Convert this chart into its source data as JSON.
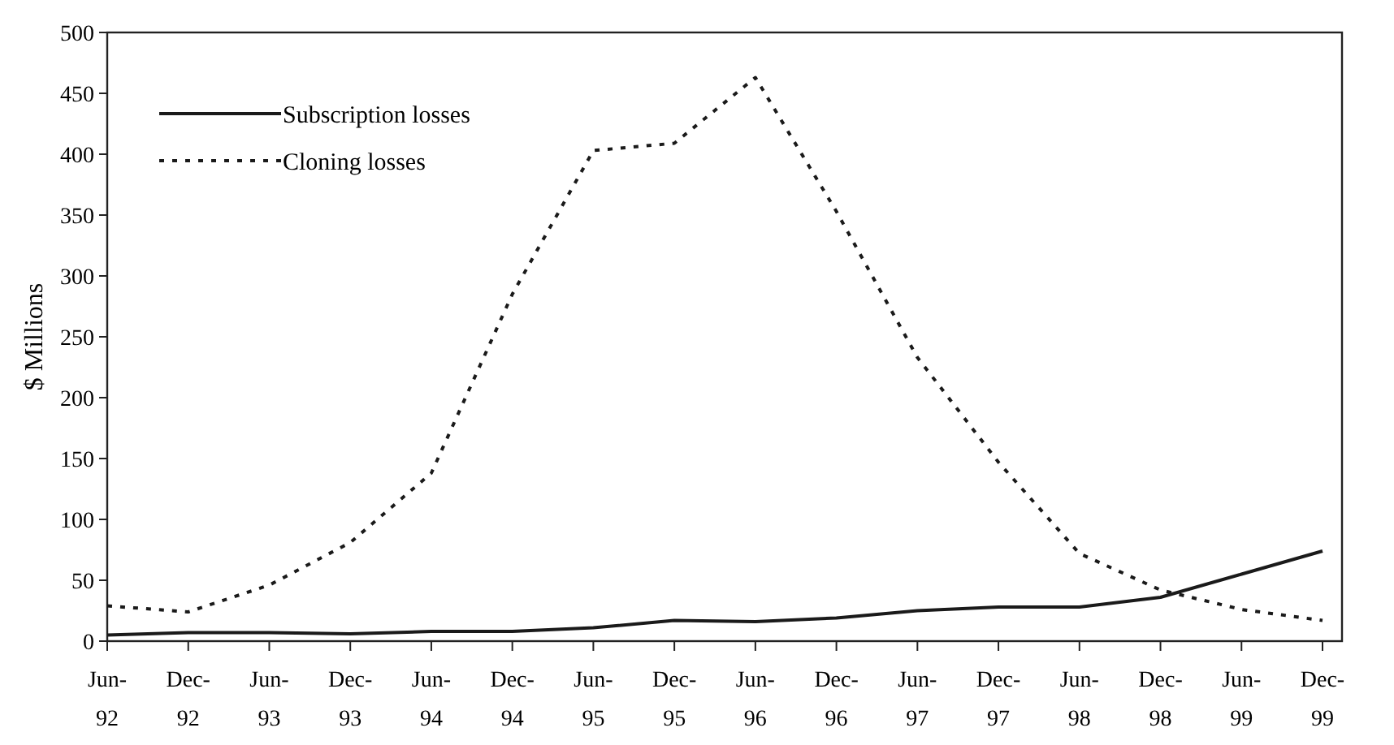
{
  "chart_data": {
    "type": "line",
    "ylabel": "$ Millions",
    "categories": [
      "Jun-92",
      "Dec-92",
      "Jun-93",
      "Dec-93",
      "Jun-94",
      "Dec-94",
      "Jun-95",
      "Dec-95",
      "Jun-96",
      "Dec-96",
      "Jun-97",
      "Dec-97",
      "Jun-98",
      "Dec-98",
      "Jun-99",
      "Dec-99"
    ],
    "series": [
      {
        "name": "Subscription losses",
        "color": "#1a1a1a",
        "line_style": "solid",
        "values": [
          5,
          7,
          7,
          6,
          8,
          8,
          11,
          17,
          16,
          19,
          25,
          28,
          28,
          36,
          55,
          74
        ]
      },
      {
        "name": "Cloning losses",
        "color": "#1a1a1a",
        "line_style": "dotted",
        "values": [
          29,
          24,
          46,
          81,
          138,
          285,
          403,
          409,
          463,
          353,
          233,
          147,
          72,
          42,
          26,
          17
        ]
      }
    ],
    "ylim": [
      0,
      500
    ],
    "yticks": [
      0,
      50,
      100,
      150,
      200,
      250,
      300,
      350,
      400,
      450,
      500
    ],
    "grid": false,
    "legend": "top left"
  }
}
